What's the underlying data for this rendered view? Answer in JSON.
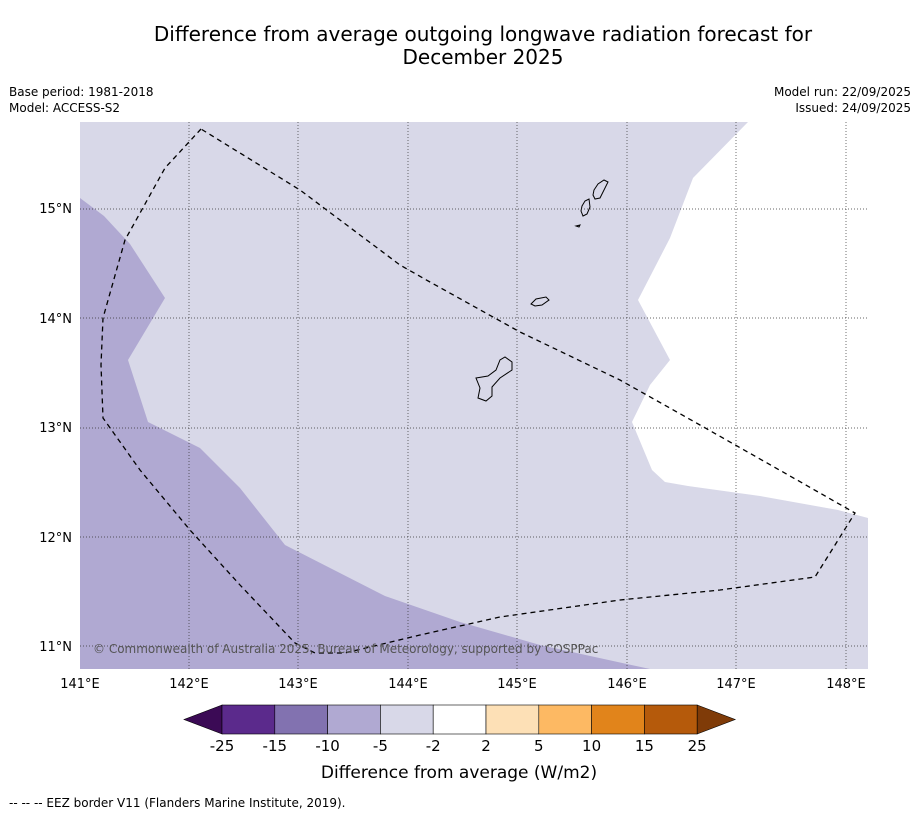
{
  "title_line1": "Difference from average outgoing longwave radiation forecast for",
  "title_line2": "December 2025",
  "base_period": "Base period: 1981-2018",
  "model": "Model: ACCESS-S2",
  "model_run": "Model run: 22/09/2025",
  "issued": "Issued: 24/09/2025",
  "map": {
    "lon_labels": [
      "141°E",
      "142°E",
      "143°E",
      "144°E",
      "145°E",
      "146°E",
      "147°E",
      "148°E"
    ],
    "lat_labels": [
      "15°N",
      "14°N",
      "13°N",
      "12°N",
      "11°N"
    ],
    "copyright": "© Commonwealth of Australia 2025, Bureau of Meteorology, supported by COSPPac"
  },
  "colorbar": {
    "title": "Difference from average (W/m2)",
    "labels": [
      "-25",
      "-15",
      "-10",
      "-5",
      "-2",
      "2",
      "5",
      "10",
      "15",
      "25"
    ],
    "colors": [
      "#3b0a55",
      "#5b2a8c",
      "#8272b0",
      "#b0a9d2",
      "#d8d8e8",
      "#ffffff",
      "#fde0b6",
      "#fdb963",
      "#e1841b",
      "#b55a0b",
      "#7f3b08"
    ]
  },
  "footer": "--  --  -- EEZ border V11 (Flanders Marine Institute, 2019)."
}
